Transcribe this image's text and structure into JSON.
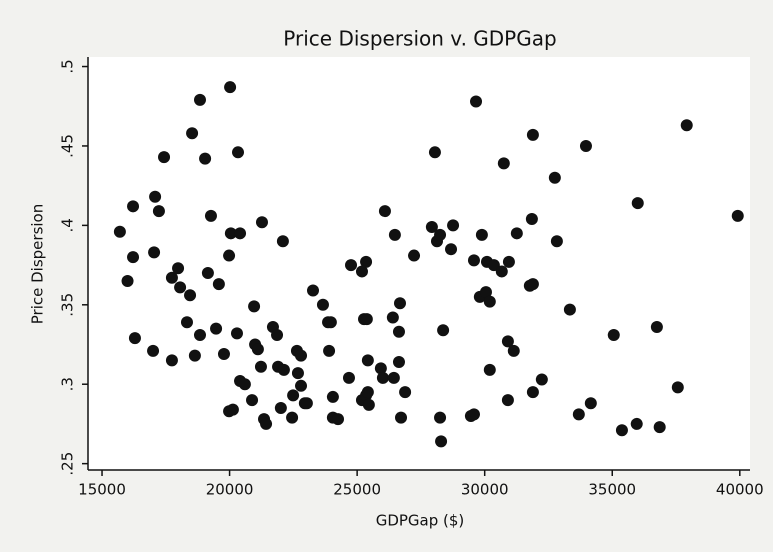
{
  "chart_data": {
    "type": "scatter",
    "title": "Price Dispersion v. GDPGap",
    "xlabel": "GDPGap ($)",
    "ylabel": "Price Dispersion",
    "color": "#111111",
    "xlim": [
      14450,
      40400
    ],
    "ylim": [
      0.246,
      0.506
    ],
    "xticks": [
      15000,
      20000,
      25000,
      30000,
      35000,
      40000
    ],
    "yticks": [
      {
        "value": 0.25,
        "label": ".25"
      },
      {
        "value": 0.3,
        "label": ".3"
      },
      {
        "value": 0.35,
        "label": ".35"
      },
      {
        "value": 0.4,
        "label": ".4"
      },
      {
        "value": 0.45,
        "label": ".45"
      },
      {
        "value": 0.5,
        "label": ".5"
      }
    ],
    "x": [
      15700,
      16000,
      16215,
      16215,
      16290,
      17000,
      17040,
      17080,
      17230,
      17430,
      17740,
      17740,
      17980,
      18060,
      18330,
      18450,
      18530,
      18640,
      18840,
      18840,
      19040,
      19150,
      19270,
      19470,
      19580,
      19780,
      19980,
      19980,
      20020,
      20050,
      20130,
      20290,
      20330,
      20410,
      20410,
      20600,
      20880,
      20960,
      21000,
      21110,
      21270,
      21350,
      21430,
      21230,
      21700,
      21860,
      21900,
      22010,
      22090,
      22130,
      22450,
      22490,
      22640,
      22680,
      22800,
      22800,
      22950,
      23030,
      23270,
      23660,
      23860,
      23970,
      23900,
      24050,
      24050,
      24250,
      24680,
      24760,
      25190,
      25270,
      25350,
      25380,
      25420,
      25190,
      25350,
      25420,
      25460,
      25930,
      26010,
      26090,
      26400,
      26440,
      26480,
      26640,
      26680,
      26640,
      26720,
      26880,
      27230,
      27930,
      28050,
      28130,
      28250,
      28250,
      28290,
      28370,
      28680,
      28760,
      29460,
      29580,
      29580,
      29660,
      29810,
      29890,
      30050,
      30090,
      30200,
      30200,
      30360,
      30670,
      30750,
      30910,
      30950,
      30910,
      31140,
      31260,
      31770,
      31890,
      31890,
      31890,
      31850,
      32240,
      32750,
      32830,
      33340,
      33690,
      33970,
      34160,
      35060,
      35380,
      35960,
      36000,
      36750,
      36860,
      37570,
      37920,
      39920
    ],
    "values": [
      0.396,
      0.365,
      0.412,
      0.38,
      0.329,
      0.321,
      0.383,
      0.418,
      0.409,
      0.443,
      0.315,
      0.367,
      0.373,
      0.361,
      0.339,
      0.356,
      0.458,
      0.318,
      0.331,
      0.479,
      0.442,
      0.37,
      0.406,
      0.335,
      0.363,
      0.319,
      0.381,
      0.283,
      0.487,
      0.395,
      0.284,
      0.332,
      0.446,
      0.395,
      0.302,
      0.3,
      0.29,
      0.349,
      0.325,
      0.322,
      0.402,
      0.278,
      0.275,
      0.311,
      0.336,
      0.331,
      0.311,
      0.285,
      0.39,
      0.309,
      0.279,
      0.293,
      0.321,
      0.307,
      0.318,
      0.299,
      0.288,
      0.288,
      0.359,
      0.35,
      0.339,
      0.339,
      0.321,
      0.292,
      0.279,
      0.278,
      0.304,
      0.375,
      0.371,
      0.341,
      0.377,
      0.341,
      0.315,
      0.29,
      0.293,
      0.295,
      0.287,
      0.31,
      0.304,
      0.409,
      0.342,
      0.304,
      0.394,
      0.333,
      0.351,
      0.314,
      0.279,
      0.295,
      0.381,
      0.399,
      0.446,
      0.39,
      0.394,
      0.279,
      0.264,
      0.334,
      0.385,
      0.4,
      0.28,
      0.281,
      0.378,
      0.478,
      0.355,
      0.394,
      0.358,
      0.377,
      0.309,
      0.352,
      0.375,
      0.371,
      0.439,
      0.29,
      0.377,
      0.327,
      0.321,
      0.395,
      0.362,
      0.363,
      0.295,
      0.457,
      0.404,
      0.303,
      0.43,
      0.39,
      0.347,
      0.281,
      0.45,
      0.288,
      0.331,
      0.271,
      0.275,
      0.414,
      0.336,
      0.273,
      0.298,
      0.463,
      0.406
    ]
  }
}
